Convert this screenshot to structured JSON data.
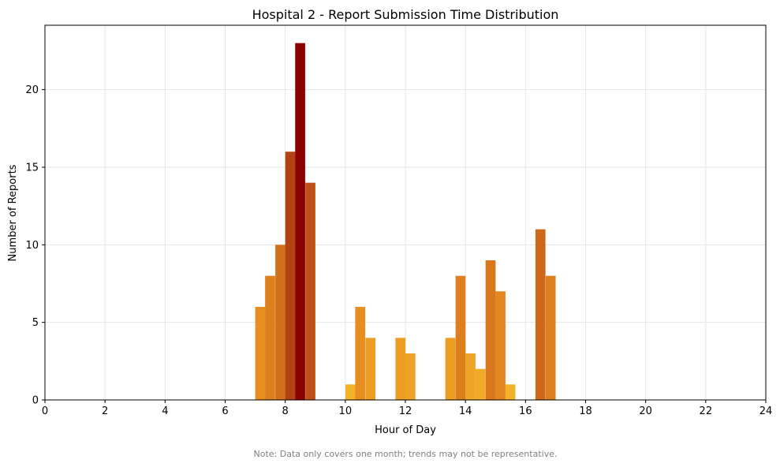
{
  "chart_data": {
    "type": "bar",
    "title": "Hospital 2 - Report Submission Time Distribution",
    "xlabel": "Hour of Day",
    "ylabel": "Number of Reports",
    "xlim": [
      0,
      24
    ],
    "ylim": [
      0,
      24.15
    ],
    "bin_width": 0.3333,
    "xticks": [
      0,
      2,
      4,
      6,
      8,
      10,
      12,
      14,
      16,
      18,
      20,
      22,
      24
    ],
    "yticks": [
      0,
      5,
      10,
      15,
      20
    ],
    "grid": true,
    "bins": [
      {
        "x": 7.0,
        "value": 6
      },
      {
        "x": 7.33,
        "value": 8
      },
      {
        "x": 7.67,
        "value": 10
      },
      {
        "x": 8.0,
        "value": 16
      },
      {
        "x": 8.33,
        "value": 23
      },
      {
        "x": 8.67,
        "value": 14
      },
      {
        "x": 10.0,
        "value": 1
      },
      {
        "x": 10.33,
        "value": 6
      },
      {
        "x": 10.67,
        "value": 4
      },
      {
        "x": 11.67,
        "value": 4
      },
      {
        "x": 12.0,
        "value": 3
      },
      {
        "x": 13.33,
        "value": 4
      },
      {
        "x": 13.67,
        "value": 8
      },
      {
        "x": 14.0,
        "value": 3
      },
      {
        "x": 14.33,
        "value": 2
      },
      {
        "x": 14.67,
        "value": 9
      },
      {
        "x": 15.0,
        "value": 7
      },
      {
        "x": 15.33,
        "value": 1
      },
      {
        "x": 16.33,
        "value": 11
      },
      {
        "x": 16.67,
        "value": 8
      }
    ],
    "color_scale": [
      "#f2b32a",
      "#e68a1f",
      "#c8611a",
      "#a8360f",
      "#8b0000"
    ],
    "note": "Note: Data only covers one month; trends may not be representative."
  }
}
